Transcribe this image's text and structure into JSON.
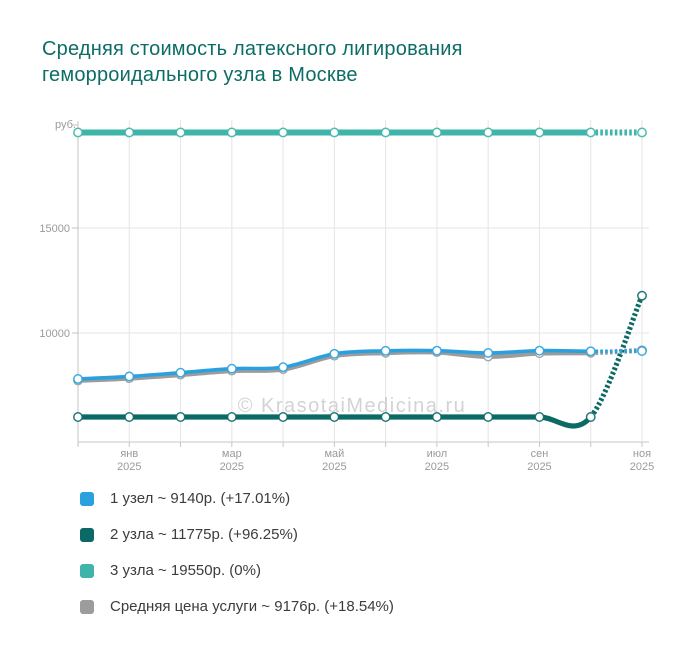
{
  "title": {
    "line1": "Средняя стоимость латексного лигирования",
    "line2": "геморроидального узла в Москве"
  },
  "watermark": "© KrasotaiMedicina.ru",
  "chart_data": {
    "type": "line",
    "title": "Средняя стоимость латексного лигирования геморроидального узла в Москве",
    "ylabel": "руб.",
    "ylim": [
      5000,
      20500
    ],
    "grid": "on",
    "legend_position": "bottom",
    "x_axis": {
      "months_count": 12,
      "tick_labels": [
        {
          "index": 1,
          "month": "янв",
          "year": "2025"
        },
        {
          "index": 3,
          "month": "мар",
          "year": "2025"
        },
        {
          "index": 5,
          "month": "май",
          "year": "2025"
        },
        {
          "index": 7,
          "month": "июл",
          "year": "2025"
        },
        {
          "index": 9,
          "month": "сен",
          "year": "2025"
        },
        {
          "index": 11,
          "month": "ноя",
          "year": "2025"
        }
      ]
    },
    "y_axis": {
      "top_label": "руб.",
      "ticks": [
        {
          "value": 15000,
          "label": "15000"
        },
        {
          "value": 10000,
          "label": "10000"
        }
      ]
    },
    "series": [
      {
        "name": "2 узла",
        "color": "#0b6a66",
        "line_width": 5.2,
        "values": [
          6000,
          6000,
          6000,
          6000,
          6000,
          6000,
          6000,
          6000,
          6000,
          6000,
          6000,
          11775
        ]
      },
      {
        "name": "3 узла",
        "color": "#3eb4aa",
        "line_width": 6,
        "values": [
          19550,
          19550,
          19550,
          19550,
          19550,
          19550,
          19550,
          19550,
          19550,
          19550,
          19550,
          19550
        ]
      },
      {
        "name": "Средняя цена услуги",
        "color": "#9c9c9c",
        "line_width": 5,
        "values": [
          7741,
          7850,
          8020,
          8210,
          8280,
          8920,
          9060,
          9090,
          8880,
          9040,
          9060,
          9176
        ]
      },
      {
        "name": "1 узел",
        "color": "#2aa1de",
        "line_width": 3.6,
        "values": [
          7811,
          7930,
          8110,
          8300,
          8370,
          9010,
          9150,
          9160,
          9050,
          9160,
          9130,
          9140
        ]
      }
    ],
    "forecast_last_segment_dashed": true
  },
  "legend": {
    "items": [
      {
        "label": "1 узел ~ 9140р. (+17.01%)",
        "color": "#2aa1de"
      },
      {
        "label": "2 узла ~ 11775р. (+96.25%)",
        "color": "#0b6a66"
      },
      {
        "label": "3 узла ~ 19550р. (0%)",
        "color": "#3eb4aa"
      },
      {
        "label": "Средняя цена услуги ~ 9176р. (+18.54%)",
        "color": "#9c9c9c"
      }
    ]
  }
}
